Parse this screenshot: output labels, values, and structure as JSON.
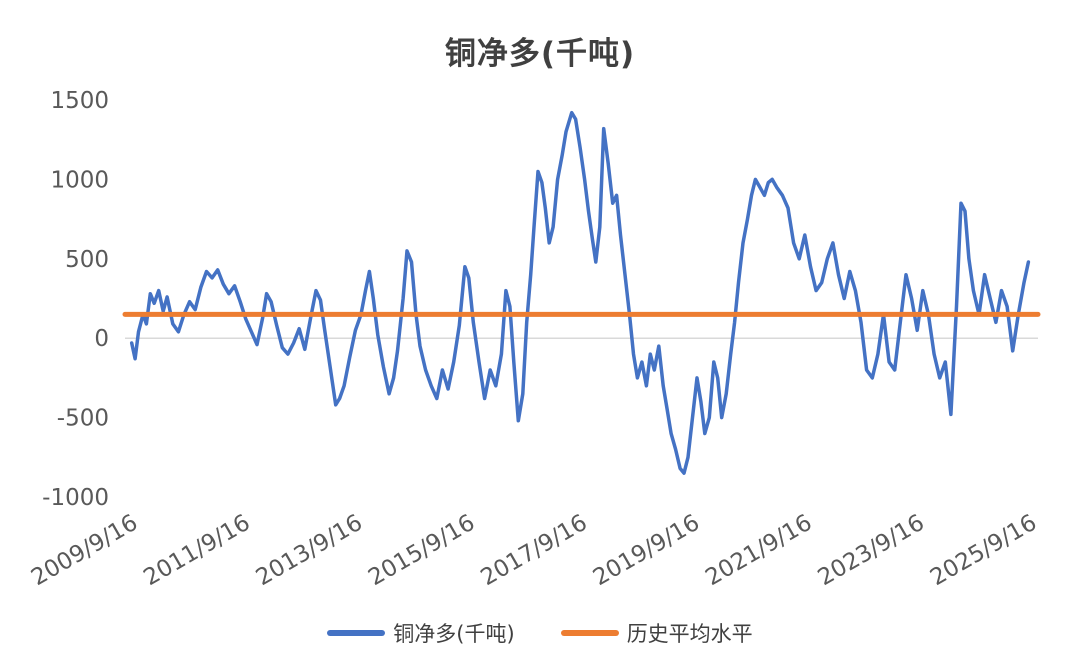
{
  "title": "铜净多(千吨)",
  "legend": [
    {
      "label": "铜净多(千吨)",
      "color": "#4472C4"
    },
    {
      "label": "历史平均水平",
      "color": "#ED7D31"
    }
  ],
  "chart_data": {
    "type": "line",
    "title": "铜净多(千吨)",
    "xlabel": "",
    "ylabel": "",
    "ylim": [
      -1000,
      1500
    ],
    "xlim": [
      2009.6,
      2025.85
    ],
    "grid": "zero-line-only",
    "legend_position": "bottom",
    "y_ticks": [
      1500,
      1000,
      500,
      0,
      -500,
      -1000
    ],
    "x_ticks": [
      {
        "x": 2009.71,
        "label": "2009/9/16"
      },
      {
        "x": 2011.71,
        "label": "2011/9/16"
      },
      {
        "x": 2013.71,
        "label": "2013/9/16"
      },
      {
        "x": 2015.71,
        "label": "2015/9/16"
      },
      {
        "x": 2017.71,
        "label": "2017/9/16"
      },
      {
        "x": 2019.71,
        "label": "2019/9/16"
      },
      {
        "x": 2021.71,
        "label": "2021/9/16"
      },
      {
        "x": 2023.71,
        "label": "2023/9/16"
      },
      {
        "x": 2025.71,
        "label": "2025/9/16"
      }
    ],
    "series_label": "铜净多(千吨)",
    "average_label": "历史平均水平",
    "average_value": 150,
    "colors": {
      "series": "#4472C4",
      "average": "#ED7D31",
      "gridline": "#d9d9d9",
      "tick_label": "#595959",
      "title": "#404040"
    },
    "points": [
      [
        2009.72,
        -30
      ],
      [
        2009.78,
        -130
      ],
      [
        2009.84,
        40
      ],
      [
        2009.92,
        150
      ],
      [
        2009.98,
        90
      ],
      [
        2010.05,
        280
      ],
      [
        2010.12,
        220
      ],
      [
        2010.2,
        300
      ],
      [
        2010.28,
        170
      ],
      [
        2010.35,
        260
      ],
      [
        2010.45,
        90
      ],
      [
        2010.55,
        40
      ],
      [
        2010.65,
        150
      ],
      [
        2010.75,
        230
      ],
      [
        2010.85,
        180
      ],
      [
        2010.95,
        320
      ],
      [
        2011.05,
        420
      ],
      [
        2011.15,
        380
      ],
      [
        2011.25,
        430
      ],
      [
        2011.35,
        340
      ],
      [
        2011.45,
        280
      ],
      [
        2011.55,
        330
      ],
      [
        2011.65,
        230
      ],
      [
        2011.75,
        120
      ],
      [
        2011.85,
        40
      ],
      [
        2011.95,
        -40
      ],
      [
        2012.05,
        130
      ],
      [
        2012.12,
        280
      ],
      [
        2012.2,
        230
      ],
      [
        2012.3,
        80
      ],
      [
        2012.4,
        -60
      ],
      [
        2012.5,
        -100
      ],
      [
        2012.6,
        -30
      ],
      [
        2012.7,
        60
      ],
      [
        2012.8,
        -70
      ],
      [
        2012.9,
        120
      ],
      [
        2013.0,
        300
      ],
      [
        2013.08,
        240
      ],
      [
        2013.15,
        60
      ],
      [
        2013.25,
        -180
      ],
      [
        2013.35,
        -420
      ],
      [
        2013.42,
        -380
      ],
      [
        2013.5,
        -300
      ],
      [
        2013.6,
        -120
      ],
      [
        2013.7,
        50
      ],
      [
        2013.8,
        150
      ],
      [
        2013.88,
        300
      ],
      [
        2013.95,
        420
      ],
      [
        2014.02,
        250
      ],
      [
        2014.1,
        20
      ],
      [
        2014.2,
        -180
      ],
      [
        2014.3,
        -350
      ],
      [
        2014.38,
        -250
      ],
      [
        2014.45,
        -80
      ],
      [
        2014.55,
        250
      ],
      [
        2014.62,
        550
      ],
      [
        2014.7,
        480
      ],
      [
        2014.78,
        150
      ],
      [
        2014.85,
        -50
      ],
      [
        2014.95,
        -200
      ],
      [
        2015.05,
        -300
      ],
      [
        2015.15,
        -380
      ],
      [
        2015.25,
        -200
      ],
      [
        2015.35,
        -320
      ],
      [
        2015.45,
        -150
      ],
      [
        2015.55,
        80
      ],
      [
        2015.65,
        450
      ],
      [
        2015.72,
        380
      ],
      [
        2015.8,
        100
      ],
      [
        2015.9,
        -150
      ],
      [
        2016.0,
        -380
      ],
      [
        2016.1,
        -200
      ],
      [
        2016.2,
        -300
      ],
      [
        2016.3,
        -100
      ],
      [
        2016.38,
        300
      ],
      [
        2016.45,
        200
      ],
      [
        2016.52,
        -150
      ],
      [
        2016.6,
        -520
      ],
      [
        2016.68,
        -350
      ],
      [
        2016.75,
        100
      ],
      [
        2016.82,
        400
      ],
      [
        2016.88,
        700
      ],
      [
        2016.95,
        1050
      ],
      [
        2017.02,
        980
      ],
      [
        2017.08,
        820
      ],
      [
        2017.15,
        600
      ],
      [
        2017.22,
        700
      ],
      [
        2017.3,
        1000
      ],
      [
        2017.38,
        1150
      ],
      [
        2017.45,
        1300
      ],
      [
        2017.55,
        1420
      ],
      [
        2017.62,
        1380
      ],
      [
        2017.7,
        1200
      ],
      [
        2017.78,
        1000
      ],
      [
        2017.85,
        800
      ],
      [
        2017.92,
        620
      ],
      [
        2017.98,
        480
      ],
      [
        2018.05,
        700
      ],
      [
        2018.12,
        1320
      ],
      [
        2018.2,
        1100
      ],
      [
        2018.28,
        850
      ],
      [
        2018.35,
        900
      ],
      [
        2018.42,
        650
      ],
      [
        2018.5,
        400
      ],
      [
        2018.58,
        150
      ],
      [
        2018.65,
        -100
      ],
      [
        2018.72,
        -250
      ],
      [
        2018.8,
        -150
      ],
      [
        2018.88,
        -300
      ],
      [
        2018.95,
        -100
      ],
      [
        2019.02,
        -200
      ],
      [
        2019.1,
        -50
      ],
      [
        2019.18,
        -300
      ],
      [
        2019.25,
        -450
      ],
      [
        2019.32,
        -600
      ],
      [
        2019.4,
        -700
      ],
      [
        2019.48,
        -820
      ],
      [
        2019.55,
        -850
      ],
      [
        2019.62,
        -750
      ],
      [
        2019.7,
        -500
      ],
      [
        2019.78,
        -250
      ],
      [
        2019.85,
        -400
      ],
      [
        2019.92,
        -600
      ],
      [
        2020.0,
        -500
      ],
      [
        2020.08,
        -150
      ],
      [
        2020.15,
        -250
      ],
      [
        2020.22,
        -500
      ],
      [
        2020.3,
        -350
      ],
      [
        2020.38,
        -100
      ],
      [
        2020.45,
        100
      ],
      [
        2020.52,
        350
      ],
      [
        2020.6,
        600
      ],
      [
        2020.68,
        750
      ],
      [
        2020.75,
        900
      ],
      [
        2020.82,
        1000
      ],
      [
        2020.9,
        950
      ],
      [
        2020.98,
        900
      ],
      [
        2021.05,
        980
      ],
      [
        2021.12,
        1000
      ],
      [
        2021.2,
        950
      ],
      [
        2021.3,
        900
      ],
      [
        2021.4,
        820
      ],
      [
        2021.5,
        600
      ],
      [
        2021.6,
        500
      ],
      [
        2021.7,
        650
      ],
      [
        2021.8,
        450
      ],
      [
        2021.9,
        300
      ],
      [
        2022.0,
        350
      ],
      [
        2022.1,
        500
      ],
      [
        2022.2,
        600
      ],
      [
        2022.3,
        400
      ],
      [
        2022.4,
        250
      ],
      [
        2022.5,
        420
      ],
      [
        2022.6,
        300
      ],
      [
        2022.7,
        100
      ],
      [
        2022.8,
        -200
      ],
      [
        2022.9,
        -250
      ],
      [
        2023.0,
        -100
      ],
      [
        2023.1,
        150
      ],
      [
        2023.2,
        -150
      ],
      [
        2023.3,
        -200
      ],
      [
        2023.4,
        100
      ],
      [
        2023.5,
        400
      ],
      [
        2023.6,
        250
      ],
      [
        2023.7,
        50
      ],
      [
        2023.8,
        300
      ],
      [
        2023.9,
        150
      ],
      [
        2024.0,
        -100
      ],
      [
        2024.1,
        -250
      ],
      [
        2024.2,
        -150
      ],
      [
        2024.3,
        -480
      ],
      [
        2024.4,
        200
      ],
      [
        2024.48,
        850
      ],
      [
        2024.55,
        800
      ],
      [
        2024.62,
        500
      ],
      [
        2024.7,
        300
      ],
      [
        2024.8,
        150
      ],
      [
        2024.9,
        400
      ],
      [
        2025.0,
        250
      ],
      [
        2025.1,
        100
      ],
      [
        2025.2,
        300
      ],
      [
        2025.3,
        200
      ],
      [
        2025.4,
        -80
      ],
      [
        2025.5,
        150
      ],
      [
        2025.6,
        350
      ],
      [
        2025.68,
        480
      ]
    ]
  }
}
